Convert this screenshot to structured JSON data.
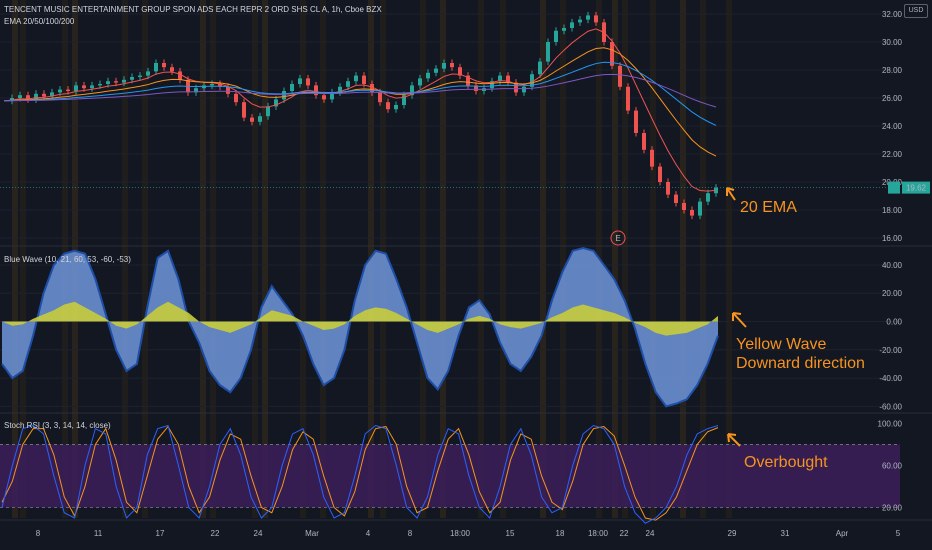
{
  "chart_data": [
    {
      "type": "candlestick",
      "title": "TENCENT MUSIC ENTERTAINMENT GROUP SPON ADS EACH REPR 2 ORD SHS CL A, 1h, Cboe BZX",
      "overlay_label": "EMA 20/50/100/200",
      "currency": "USD",
      "ylim": [
        15.5,
        33
      ],
      "yticks": [
        16,
        18,
        20,
        22,
        24,
        26,
        28,
        30,
        32
      ],
      "ytick_labels": [
        "16.00",
        "18.00",
        "20.00",
        "22.00",
        "24.00",
        "26.00",
        "28.00",
        "30.00",
        "32.00"
      ],
      "last_price_label": "19.62",
      "price": [
        25.8,
        26.0,
        26.2,
        25.9,
        26.3,
        26.1,
        26.4,
        26.6,
        26.5,
        26.9,
        26.7,
        26.9,
        27.0,
        27.2,
        27.1,
        27.3,
        27.5,
        27.6,
        27.9,
        28.5,
        28.2,
        27.9,
        27.3,
        26.4,
        26.7,
        26.9,
        27.0,
        26.8,
        26.3,
        25.7,
        24.6,
        24.3,
        24.7,
        25.4,
        25.9,
        26.5,
        27.0,
        27.4,
        26.9,
        26.2,
        25.9,
        26.4,
        26.8,
        27.2,
        27.6,
        27.0,
        26.4,
        25.7,
        25.2,
        25.5,
        26.2,
        26.9,
        27.4,
        27.8,
        28.1,
        28.5,
        28.2,
        27.6,
        26.9,
        26.5,
        26.7,
        27.2,
        27.6,
        27.1,
        26.4,
        26.8,
        27.7,
        28.6,
        30.0,
        30.8,
        31.0,
        31.4,
        31.6,
        31.9,
        31.4,
        30.0,
        28.3,
        26.8,
        25.1,
        23.5,
        22.3,
        21.1,
        20.0,
        19.1,
        18.5,
        18.0,
        17.6,
        18.6,
        19.2,
        19.6
      ],
      "ema_labels": [
        "20 EMA"
      ]
    },
    {
      "type": "area",
      "title": "Blue Wave (10, 21, 60, 53, -60, -53)",
      "ylim": [
        -64,
        52
      ],
      "yticks": [
        40,
        20,
        0,
        -20,
        -40,
        -60
      ],
      "ytick_labels": [
        "40.00",
        "20.00",
        "0.00",
        "-20.00",
        "-40.00",
        "-60.00"
      ],
      "blue_wave": [
        -30,
        -40,
        -35,
        -10,
        20,
        40,
        48,
        50,
        48,
        30,
        5,
        -20,
        -35,
        -30,
        10,
        45,
        50,
        30,
        0,
        -15,
        -35,
        -45,
        -50,
        -40,
        -20,
        10,
        25,
        15,
        5,
        -10,
        -30,
        -45,
        -40,
        -20,
        15,
        40,
        50,
        48,
        30,
        10,
        -15,
        -40,
        -48,
        -35,
        -10,
        10,
        15,
        5,
        -15,
        -30,
        -35,
        -25,
        -10,
        15,
        35,
        50,
        52,
        50,
        40,
        30,
        15,
        -5,
        -30,
        -50,
        -60,
        -58,
        -55,
        -45,
        -30,
        -10
      ],
      "yellow_wave": [
        0,
        -3,
        -2,
        2,
        5,
        8,
        12,
        14,
        10,
        6,
        2,
        -3,
        -5,
        -2,
        4,
        10,
        14,
        10,
        6,
        0,
        -4,
        -6,
        -8,
        -5,
        -2,
        3,
        8,
        6,
        4,
        0,
        -3,
        -6,
        -5,
        -2,
        4,
        8,
        10,
        9,
        6,
        2,
        -2,
        -6,
        -8,
        -5,
        -2,
        2,
        4,
        2,
        -2,
        -4,
        -5,
        -3,
        -1,
        3,
        6,
        10,
        12,
        10,
        8,
        6,
        3,
        -1,
        -4,
        -8,
        -10,
        -9,
        -8,
        -5,
        -2,
        4
      ],
      "annotations": [
        "Yellow Wave",
        "Downard direction"
      ],
      "event_marker": "E"
    },
    {
      "type": "line",
      "title": "Stoch RSI (3, 3, 14, 14, close)",
      "ylim": [
        10,
        108
      ],
      "yticks": [
        100,
        60,
        20
      ],
      "ytick_labels": [
        "100.00",
        "60.00",
        "20.00"
      ],
      "band": [
        20,
        80
      ],
      "k": [
        20,
        60,
        95,
        98,
        90,
        50,
        15,
        10,
        60,
        95,
        90,
        40,
        10,
        20,
        70,
        95,
        98,
        60,
        20,
        10,
        40,
        80,
        95,
        70,
        30,
        10,
        20,
        60,
        90,
        95,
        70,
        30,
        10,
        15,
        50,
        90,
        98,
        95,
        60,
        20,
        10,
        30,
        70,
        95,
        90,
        50,
        20,
        10,
        40,
        80,
        95,
        70,
        30,
        15,
        20,
        60,
        90,
        98,
        95,
        80,
        40,
        15,
        5,
        10,
        20,
        40,
        70,
        90,
        95,
        98
      ],
      "d": [
        25,
        45,
        80,
        95,
        95,
        70,
        30,
        12,
        40,
        80,
        95,
        65,
        25,
        15,
        50,
        85,
        97,
        80,
        40,
        15,
        30,
        65,
        90,
        85,
        50,
        20,
        15,
        40,
        75,
        92,
        85,
        50,
        20,
        12,
        35,
        75,
        95,
        97,
        80,
        40,
        15,
        20,
        55,
        85,
        95,
        70,
        35,
        15,
        25,
        65,
        90,
        85,
        50,
        25,
        18,
        45,
        80,
        95,
        97,
        88,
        60,
        30,
        10,
        8,
        15,
        30,
        55,
        80,
        92,
        96
      ],
      "annotations": [
        "Overbought"
      ]
    }
  ],
  "x_axis": {
    "tick_labels": [
      "8",
      "11",
      "17",
      "22",
      "24",
      "Mar",
      "4",
      "8",
      "18:00",
      "15",
      "18",
      "18:00",
      "22",
      "24",
      "29",
      "31",
      "Apr",
      "5"
    ]
  }
}
